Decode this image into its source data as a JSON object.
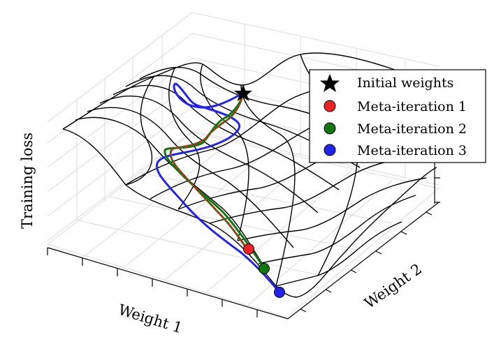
{
  "chart_data": {
    "type": "surface-3d",
    "xlabel": "Weight 1",
    "ylabel": "Weight 2",
    "zlabel": "Training loss",
    "grid": true,
    "legend_position": "top-right",
    "legend": [
      {
        "label": "Initial weights",
        "marker": "star",
        "color": "#000000"
      },
      {
        "label": "Meta-iteration 1",
        "marker": "circle",
        "color": "#ee2222"
      },
      {
        "label": "Meta-iteration 2",
        "marker": "circle",
        "color": "#117711"
      },
      {
        "label": "Meta-iteration 3",
        "marker": "circle",
        "color": "#2222ee"
      }
    ],
    "series": [
      {
        "name": "Meta-iteration 1",
        "color": "#ee2222"
      },
      {
        "name": "Meta-iteration 2",
        "color": "#117711"
      },
      {
        "name": "Meta-iteration 3",
        "color": "#2222ee"
      }
    ]
  }
}
